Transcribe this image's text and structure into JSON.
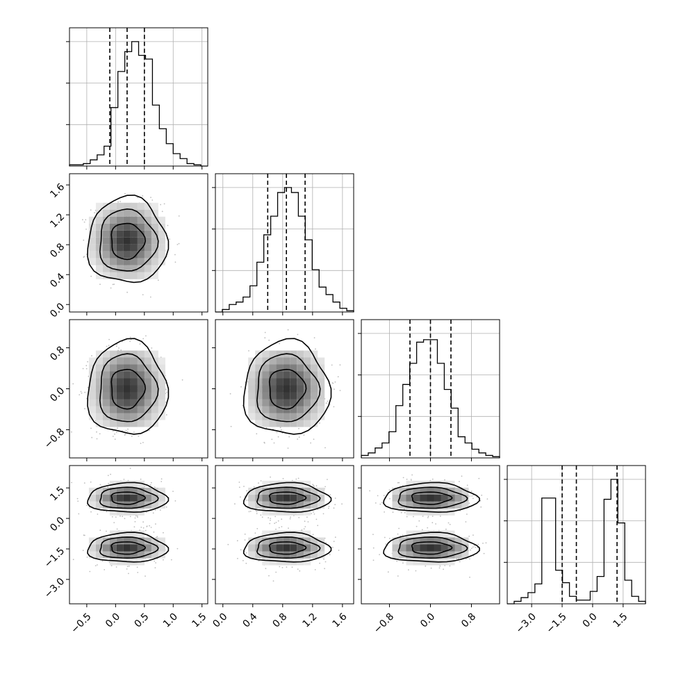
{
  "chart_data": {
    "type": "corner",
    "params": [
      {
        "range": [
          -0.8,
          1.6
        ],
        "ticks": [
          -0.5,
          0.0,
          0.5,
          1.0,
          1.5
        ],
        "tick_labels": [
          "−0.5",
          "0.0",
          "0.5",
          "1.0",
          "1.5"
        ],
        "quantiles": [
          -0.1,
          0.2,
          0.5
        ]
      },
      {
        "range": [
          -0.1,
          1.75
        ],
        "ticks": [
          0.0,
          0.4,
          0.8,
          1.2,
          1.6
        ],
        "tick_labels": [
          "0.0",
          "0.4",
          "0.8",
          "1.2",
          "1.6"
        ],
        "quantiles": [
          0.6,
          0.85,
          1.1
        ]
      },
      {
        "range": [
          -1.35,
          1.35
        ],
        "ticks": [
          -0.8,
          0.0,
          0.8
        ],
        "tick_labels": [
          "−0.8",
          "0.0",
          "0.8"
        ],
        "quantiles": [
          -0.4,
          0.0,
          0.4
        ]
      },
      {
        "range": [
          -4.2,
          2.6
        ],
        "ticks": [
          -3.0,
          -1.5,
          0.0,
          1.5
        ],
        "tick_labels": [
          "−3.0",
          "−1.5",
          "0.0",
          "1.5"
        ],
        "quantiles": [
          -1.5,
          -0.8,
          1.2
        ]
      }
    ],
    "histograms": [
      {
        "counts": [
          0.01,
          0.01,
          0.02,
          0.05,
          0.09,
          0.16,
          0.47,
          0.76,
          0.92,
          1.0,
          0.89,
          0.86,
          0.49,
          0.3,
          0.18,
          0.1,
          0.06,
          0.02,
          0.01,
          0.0
        ]
      },
      {
        "counts": [
          0.0,
          0.02,
          0.06,
          0.08,
          0.12,
          0.21,
          0.4,
          0.62,
          0.77,
          0.96,
          1.0,
          0.96,
          0.77,
          0.58,
          0.34,
          0.2,
          0.14,
          0.08,
          0.03,
          0.01
        ]
      },
      {
        "counts": [
          0.02,
          0.04,
          0.08,
          0.12,
          0.21,
          0.42,
          0.59,
          0.76,
          0.93,
          0.95,
          0.95,
          0.76,
          0.55,
          0.4,
          0.17,
          0.12,
          0.07,
          0.04,
          0.02,
          0.01
        ]
      },
      {
        "counts": [
          0.0,
          0.02,
          0.05,
          0.09,
          0.16,
          0.85,
          0.85,
          0.27,
          0.17,
          0.06,
          0.03,
          0.03,
          0.1,
          0.22,
          0.84,
          1.0,
          0.65,
          0.19,
          0.06,
          0.02
        ]
      }
    ],
    "bimodal_4th": {
      "modes": [
        -1.45,
        1.0
      ]
    },
    "notes": "2D panels show scatter points, grayscale density histogram and three contour levels per mode."
  }
}
